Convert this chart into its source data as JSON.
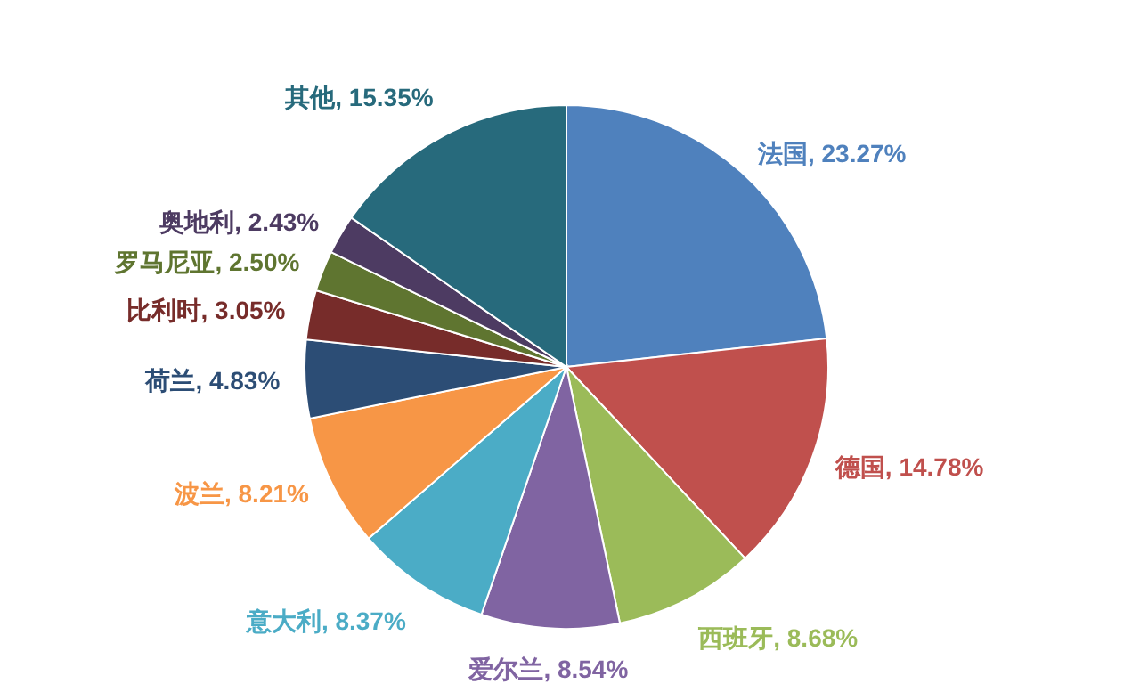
{
  "chart_data": {
    "type": "pie",
    "categories": [
      "法国",
      "德国",
      "西班牙",
      "爱尔兰",
      "意大利",
      "波兰",
      "荷兰",
      "比利时",
      "罗马尼亚",
      "奥地利",
      "其他"
    ],
    "values": [
      23.27,
      14.78,
      8.68,
      8.54,
      8.37,
      8.21,
      4.83,
      3.05,
      2.5,
      2.43,
      15.35
    ],
    "value_labels": [
      "23.27%",
      "14.78%",
      "8.68%",
      "8.54%",
      "8.37%",
      "8.21%",
      "4.83%",
      "3.05%",
      "2.50%",
      "2.43%",
      "15.35%"
    ],
    "colors": [
      "#4f81bd",
      "#c0504d",
      "#9bbb59",
      "#8064a2",
      "#4bacc6",
      "#f79646",
      "#2c4d75",
      "#772c2a",
      "#5f7530",
      "#4d3b62",
      "#276a7c"
    ],
    "legend": false
  }
}
